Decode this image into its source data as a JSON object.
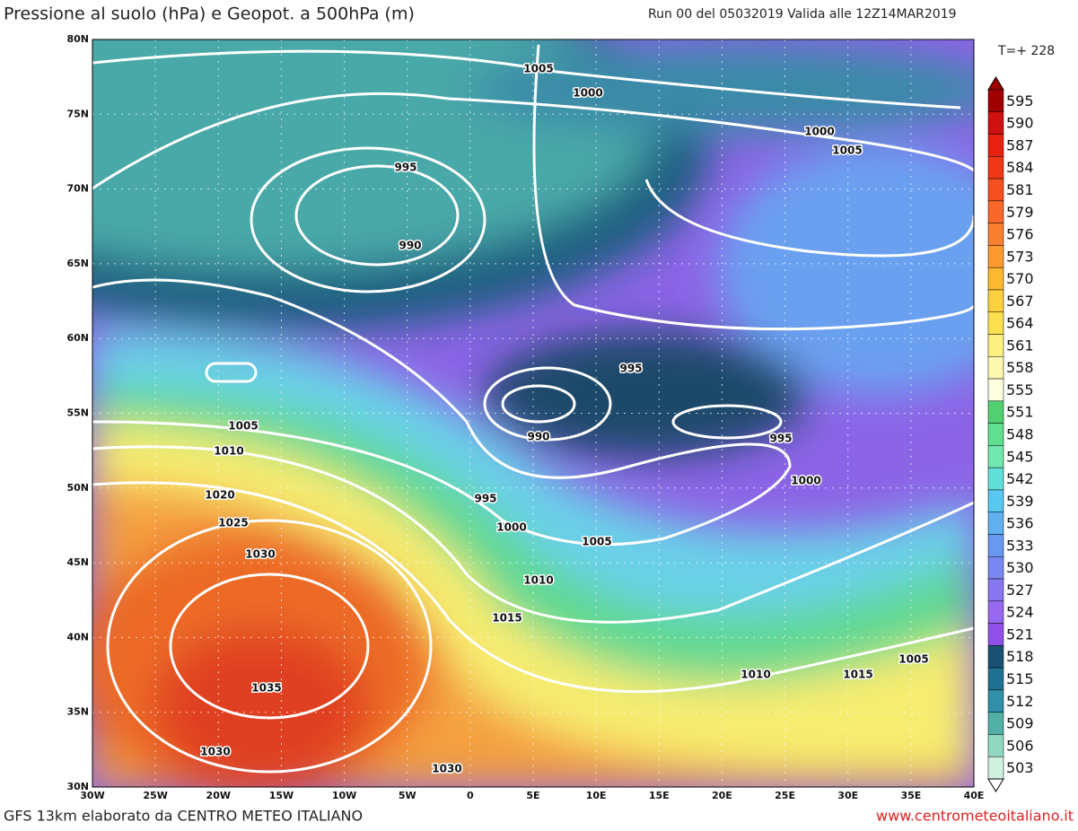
{
  "header": {
    "title": "Pressione al suolo (hPa) e Geopot. a 500hPa (m)",
    "run": "Run 00 del 05032019 Valida alle 12Z14MAR2019",
    "step": "T=+ 228"
  },
  "map": {
    "lat_labels": [
      "80N",
      "75N",
      "70N",
      "65N",
      "60N",
      "55N",
      "50N",
      "45N",
      "40N",
      "35N",
      "30N"
    ],
    "lon_labels": [
      "30W",
      "25W",
      "20W",
      "15W",
      "10W",
      "5W",
      "0",
      "5E",
      "10E",
      "15E",
      "20E",
      "25E",
      "30E",
      "35E",
      "40E"
    ],
    "isobar_labels": [
      1005,
      1000,
      1000,
      1005,
      995,
      990,
      995,
      990,
      1005,
      1010,
      1020,
      1025,
      1030,
      1035,
      1030,
      1030,
      995,
      1000,
      995,
      1000,
      1005,
      1010,
      1015,
      1005,
      1010,
      1015
    ]
  },
  "legend": {
    "values": [
      595,
      590,
      587,
      584,
      581,
      579,
      576,
      573,
      570,
      567,
      564,
      561,
      558,
      555,
      551,
      548,
      545,
      542,
      539,
      536,
      533,
      530,
      527,
      524,
      521,
      518,
      515,
      512,
      509,
      506,
      503
    ],
    "colors": [
      "#a00000",
      "#d01010",
      "#e82010",
      "#f03818",
      "#f45020",
      "#f86828",
      "#fa8030",
      "#fc9a30",
      "#fdb830",
      "#fdd040",
      "#fde050",
      "#fdf080",
      "#fdf8b0",
      "#fefee0",
      "#50d070",
      "#60e090",
      "#70e8b0",
      "#60e0d8",
      "#58c8f0",
      "#60b0f0",
      "#6898f0",
      "#7888f0",
      "#8878f0",
      "#9868f0",
      "#9050e8",
      "#1a5070",
      "#207090",
      "#3090a8",
      "#50b0a8",
      "#90d8c0",
      "#d0f0e0"
    ]
  },
  "footer": {
    "model": "GFS 13km elaborato da CENTRO METEO ITALIANO",
    "site": "www.centrometeoitaliano.it"
  }
}
